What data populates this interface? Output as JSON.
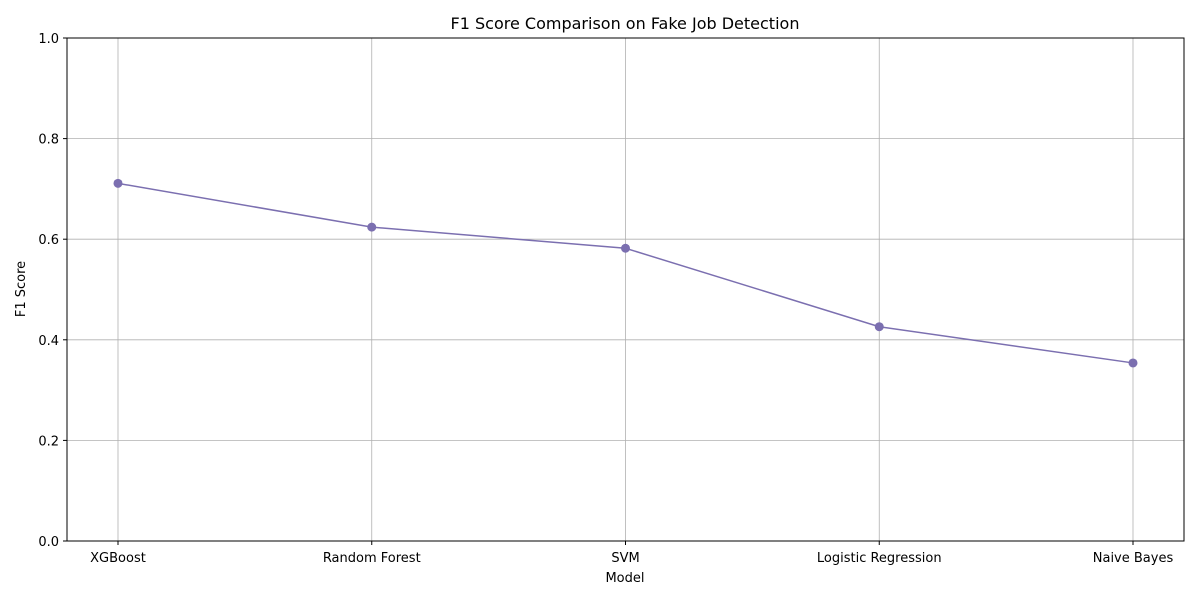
{
  "chart_data": {
    "type": "line",
    "title": "F1 Score Comparison on Fake Job Detection",
    "xlabel": "Model",
    "ylabel": "F1 Score",
    "categories": [
      "XGBoost",
      "Random Forest",
      "SVM",
      "Logistic Regression",
      "Naive Bayes"
    ],
    "series": [
      {
        "values": [
          0.711,
          0.624,
          0.582,
          0.426,
          0.354
        ],
        "color": "#7b6fb0",
        "marker": "circle"
      }
    ],
    "ylim": [
      0,
      1
    ],
    "yticks": [
      0.0,
      0.2,
      0.4,
      0.6,
      0.8,
      1.0
    ],
    "ytick_labels": [
      "0.0",
      "0.2",
      "0.4",
      "0.6",
      "0.8",
      "1.0"
    ],
    "grid": true,
    "legend": "none"
  }
}
